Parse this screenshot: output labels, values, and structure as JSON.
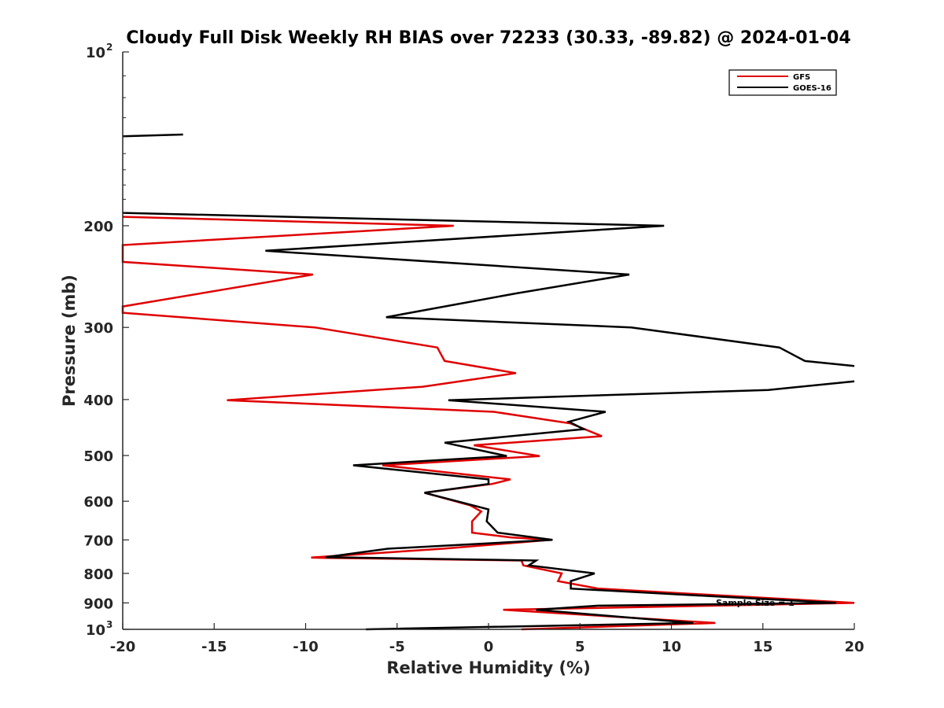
{
  "chart_data": {
    "type": "line",
    "title": "Cloudy Full Disk Weekly RH BIAS over 72233 (30.33, -89.82) @ 2024-01-04",
    "xlabel": "Relative Humidity (%)",
    "ylabel": "Pressure (mb)",
    "xlim": [
      -20,
      20
    ],
    "ylim": [
      100,
      1000
    ],
    "y_scale": "log",
    "y_reversed": true,
    "x_ticks": [
      "-20",
      "-15",
      "-10",
      "-5",
      "0",
      "5",
      "10",
      "15",
      "20"
    ],
    "y_ticks": [
      {
        "value": 100,
        "label": "10",
        "sup": "2"
      },
      {
        "value": 200,
        "label": "200",
        "sup": ""
      },
      {
        "value": 300,
        "label": "300",
        "sup": ""
      },
      {
        "value": 400,
        "label": "400",
        "sup": ""
      },
      {
        "value": 500,
        "label": "500",
        "sup": ""
      },
      {
        "value": 600,
        "label": "600",
        "sup": ""
      },
      {
        "value": 700,
        "label": "700",
        "sup": ""
      },
      {
        "value": 800,
        "label": "800",
        "sup": ""
      },
      {
        "value": 900,
        "label": "900",
        "sup": ""
      },
      {
        "value": 1000,
        "label": "10",
        "sup": "3"
      }
    ],
    "legend_position": "top-right",
    "annotation": "Sample Size = 1",
    "series": [
      {
        "name": "GFS",
        "color": "#e00000",
        "segments": [
          [
            [
              -20,
              193
            ],
            [
              -1.9,
              200
            ],
            [
              -20,
              216
            ],
            [
              -20,
              231
            ],
            [
              -9.6,
              243
            ],
            [
              -20,
              276
            ],
            [
              -20,
              283
            ],
            [
              -9.5,
              300
            ],
            [
              -2.8,
              325
            ],
            [
              -2.4,
              343
            ],
            [
              1.5,
              360
            ],
            [
              -3.6,
              380
            ],
            [
              -14.3,
              401
            ],
            [
              0.3,
              420
            ],
            [
              4.5,
              440
            ],
            [
              6.2,
              463
            ],
            [
              -0.8,
              480
            ],
            [
              2.8,
              501
            ],
            [
              -5.8,
              520
            ],
            [
              1.2,
              550
            ],
            [
              0.2,
              560
            ],
            [
              -3.5,
              580
            ],
            [
              -1,
              610
            ],
            [
              -0.4,
              625
            ],
            [
              -0.9,
              650
            ],
            [
              -0.9,
              680
            ],
            [
              1.2,
              693
            ],
            [
              3.4,
              700
            ],
            [
              -2.5,
              725
            ],
            [
              -9.7,
              751
            ],
            [
              -9.1,
              752
            ],
            [
              1.8,
              760
            ],
            [
              1.9,
              775
            ],
            [
              4,
              800
            ],
            [
              3.8,
              825
            ],
            [
              6,
              850
            ],
            [
              20,
              900
            ],
            [
              0.8,
              925
            ],
            [
              12.4,
              975
            ],
            [
              1.8,
              1000
            ]
          ]
        ]
      },
      {
        "name": "GOES-16",
        "color": "#000000",
        "segments": [
          [
            [
              -20,
              140
            ],
            [
              -16.7,
              139
            ]
          ],
          [
            [
              -20,
              190
            ],
            [
              9.6,
              200
            ],
            [
              -12.2,
              221
            ],
            [
              7.7,
              243
            ],
            [
              1.5,
              262
            ],
            [
              -5.6,
              288
            ],
            [
              7.8,
              300
            ],
            [
              15.9,
              325
            ],
            [
              17.3,
              343
            ],
            [
              20,
              350
            ]
          ],
          [
            [
              20,
              372
            ],
            [
              15.3,
              385
            ],
            [
              -2.2,
              401
            ],
            [
              6.4,
              420
            ],
            [
              4.4,
              437
            ],
            [
              5.2,
              450
            ],
            [
              -2.4,
              475
            ],
            [
              1,
              501
            ],
            [
              -7.4,
              520
            ],
            [
              0,
              550
            ],
            [
              0,
              560
            ],
            [
              -3.5,
              580
            ],
            [
              0,
              620
            ],
            [
              -0.1,
              650
            ],
            [
              0.5,
              680
            ],
            [
              3.5,
              700
            ],
            [
              -5.5,
              725
            ],
            [
              -8.9,
              750
            ],
            [
              2.6,
              760
            ],
            [
              2.2,
              775
            ],
            [
              5.8,
              800
            ],
            [
              4.5,
              825
            ],
            [
              4.5,
              850
            ],
            [
              19,
              900
            ],
            [
              6,
              910
            ],
            [
              2.6,
              925
            ],
            [
              11.2,
              975
            ],
            [
              -6.7,
              1000
            ]
          ]
        ]
      }
    ]
  }
}
